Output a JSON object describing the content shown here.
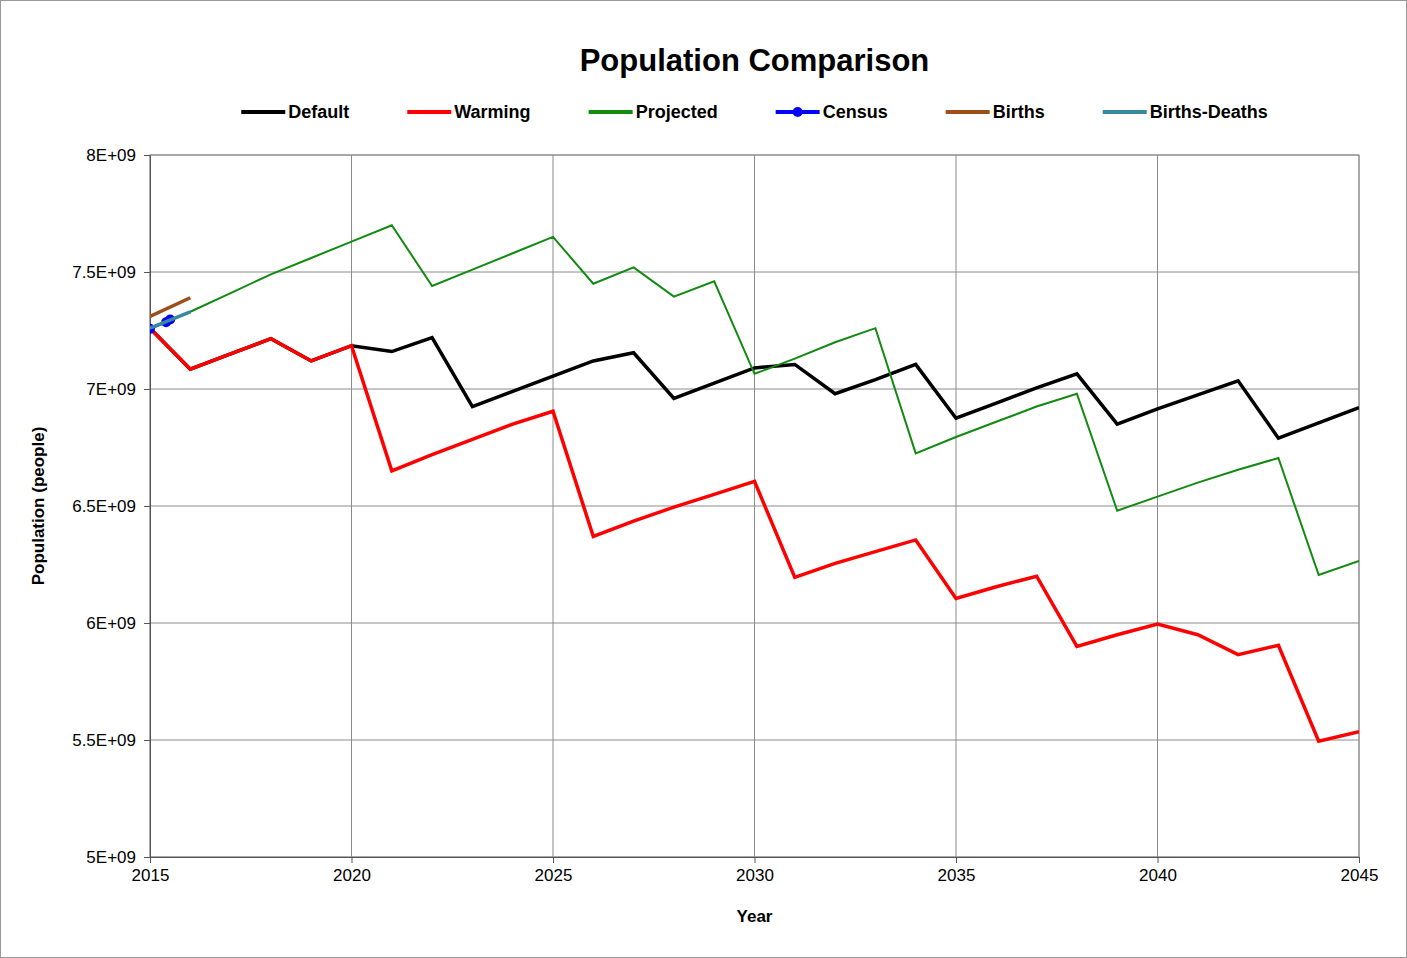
{
  "chart_data": {
    "type": "line",
    "title": "Population Comparison",
    "x_label": "Year",
    "y_label": "Population (people)",
    "x": [
      2015,
      2016,
      2017,
      2018,
      2019,
      2020,
      2021,
      2022,
      2023,
      2024,
      2025,
      2026,
      2027,
      2028,
      2029,
      2030,
      2031,
      2032,
      2033,
      2034,
      2035,
      2036,
      2037,
      2038,
      2039,
      2040,
      2041,
      2042,
      2043,
      2044,
      2045
    ],
    "xlim": [
      2015,
      2045
    ],
    "xticks": [
      2015,
      2020,
      2025,
      2030,
      2035,
      2040,
      2045
    ],
    "ylim": [
      5000000000,
      8000000000
    ],
    "yticks": [
      {
        "value": 5000000000,
        "label": "5E+09"
      },
      {
        "value": 5500000000,
        "label": "5.5E+09"
      },
      {
        "value": 6000000000,
        "label": "6E+09"
      },
      {
        "value": 6500000000,
        "label": "6.5E+09"
      },
      {
        "value": 7000000000,
        "label": "7E+09"
      },
      {
        "value": 7500000000,
        "label": "7.5E+09"
      },
      {
        "value": 8000000000,
        "label": "8E+09"
      }
    ],
    "grid": true,
    "legend": "top",
    "series": [
      {
        "name": "Default",
        "color": "#000000",
        "line_style": "solid",
        "values": [
          7260000000,
          7085000000,
          7150000000,
          7215000000,
          7120000000,
          7185000000,
          7160000000,
          7220000000,
          6925000000,
          6990000000,
          7055000000,
          7120000000,
          7155000000,
          6960000000,
          7025000000,
          7090000000,
          7105000000,
          6980000000,
          7040000000,
          7105000000,
          6875000000,
          6940000000,
          7005000000,
          7065000000,
          6850000000,
          6915000000,
          6975000000,
          7035000000,
          6790000000,
          6855000000,
          6920000000
        ]
      },
      {
        "name": "Warming",
        "color": "#ff0000",
        "line_style": "solid",
        "values": [
          7260000000,
          7085000000,
          7150000000,
          7215000000,
          7120000000,
          7185000000,
          6650000000,
          6720000000,
          6785000000,
          6850000000,
          6905000000,
          6370000000,
          6435000000,
          6495000000,
          6550000000,
          6605000000,
          6195000000,
          6255000000,
          6305000000,
          6355000000,
          6105000000,
          6155000000,
          6200000000,
          5900000000,
          5950000000,
          5995000000,
          5950000000,
          5865000000,
          5905000000,
          5495000000,
          5535000000
        ]
      },
      {
        "name": "Projected",
        "color": "#128a12",
        "line_style": "solid",
        "values": [
          7260000000,
          7330000000,
          7410000000,
          7490000000,
          7560000000,
          7630000000,
          7700000000,
          7440000000,
          7510000000,
          7580000000,
          7650000000,
          7450000000,
          7520000000,
          7395000000,
          7460000000,
          7065000000,
          7130000000,
          7200000000,
          7260000000,
          6725000000,
          6795000000,
          6860000000,
          6925000000,
          6980000000,
          6480000000,
          6540000000,
          6600000000,
          6655000000,
          6705000000,
          6205000000,
          6265000000
        ]
      },
      {
        "name": "Census",
        "color": "#0000ff",
        "line_style": "solid",
        "marker": "circle",
        "x": [
          2015,
          2015.4,
          2015.5
        ],
        "values": [
          7257000000,
          7285000000,
          7297000000
        ]
      },
      {
        "name": "Births",
        "color": "#9b4f1a",
        "line_style": "solid",
        "x": [
          2015,
          2016
        ],
        "values": [
          7310000000,
          7390000000
        ]
      },
      {
        "name": "Births-Deaths",
        "color": "#3a87a0",
        "line_style": "solid",
        "x": [
          2015,
          2016
        ],
        "values": [
          7260000000,
          7330000000
        ]
      }
    ]
  }
}
